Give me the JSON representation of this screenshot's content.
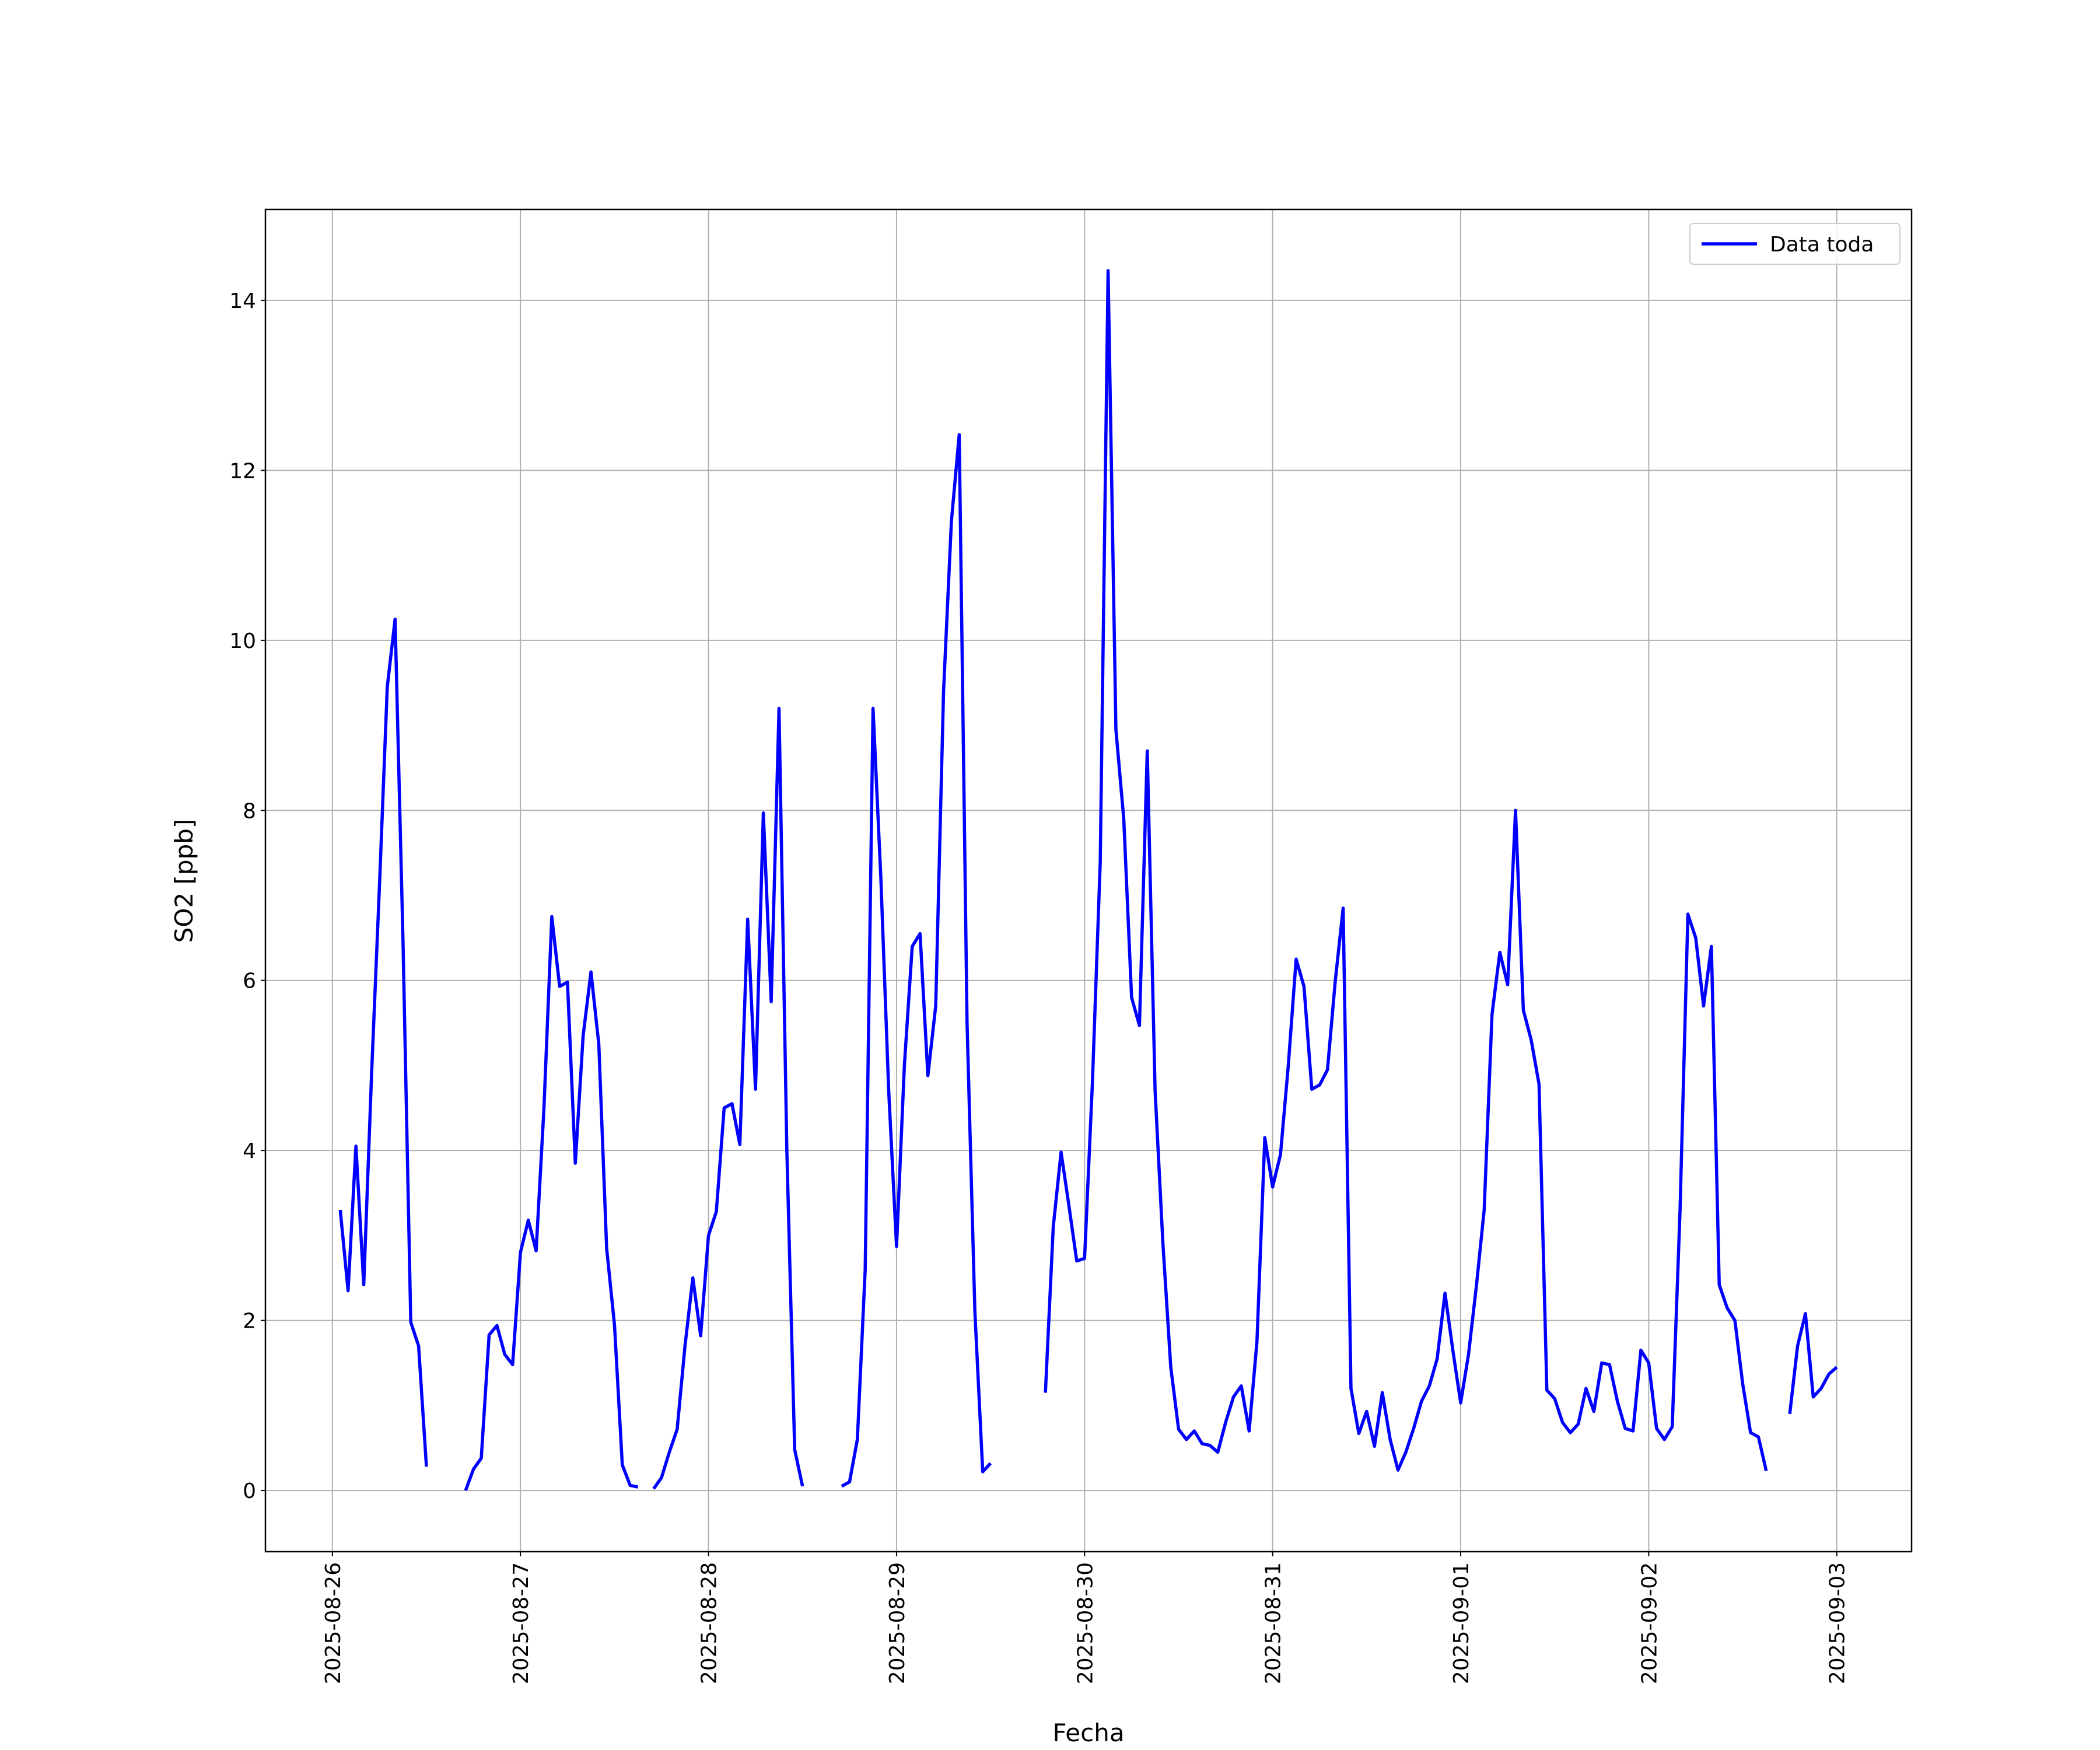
{
  "chart_data": {
    "type": "line",
    "x_label": "Fecha",
    "y_label": "SO2 [ppb]",
    "grid": true,
    "legend": "upper right",
    "xlim": [
      "2025-08-25 15:27",
      "2025-09-03 09:33"
    ],
    "xticks": [
      "2025-08-26",
      "2025-08-27",
      "2025-08-28",
      "2025-08-29",
      "2025-08-30",
      "2025-08-31",
      "2025-09-01",
      "2025-09-02",
      "2025-09-03"
    ],
    "ylim": [
      -0.72,
      15.07
    ],
    "yticks": [
      0,
      2,
      4,
      6,
      8,
      10,
      12,
      14
    ],
    "x": [
      "2025-08-26 01:00",
      "2025-08-26 02:00",
      "2025-08-26 03:00",
      "2025-08-26 04:00",
      "2025-08-26 05:00",
      "2025-08-26 06:00",
      "2025-08-26 07:00",
      "2025-08-26 08:00",
      "2025-08-26 09:00",
      "2025-08-26 10:00",
      "2025-08-26 11:00",
      "2025-08-26 12:00",
      "2025-08-26 13:00",
      "2025-08-26 17:00",
      "2025-08-26 18:00",
      "2025-08-26 19:00",
      "2025-08-26 20:00",
      "2025-08-26 21:00",
      "2025-08-26 22:00",
      "2025-08-26 23:00",
      "2025-08-27 00:00",
      "2025-08-27 01:00",
      "2025-08-27 02:00",
      "2025-08-27 03:00",
      "2025-08-27 04:00",
      "2025-08-27 05:00",
      "2025-08-27 06:00",
      "2025-08-27 07:00",
      "2025-08-27 08:00",
      "2025-08-27 09:00",
      "2025-08-27 10:00",
      "2025-08-27 11:00",
      "2025-08-27 12:00",
      "2025-08-27 13:00",
      "2025-08-27 14:00",
      "2025-08-27 15:00",
      "2025-08-27 16:00",
      "2025-08-27 17:00",
      "2025-08-27 18:00",
      "2025-08-27 19:00",
      "2025-08-27 20:00",
      "2025-08-27 21:00",
      "2025-08-27 22:00",
      "2025-08-27 23:00",
      "2025-08-28 00:00",
      "2025-08-28 01:00",
      "2025-08-28 02:00",
      "2025-08-28 03:00",
      "2025-08-28 04:00",
      "2025-08-28 05:00",
      "2025-08-28 06:00",
      "2025-08-28 07:00",
      "2025-08-28 08:00",
      "2025-08-28 09:00",
      "2025-08-28 10:00",
      "2025-08-28 11:00",
      "2025-08-28 12:00",
      "2025-08-28 13:00",
      "2025-08-28 17:00",
      "2025-08-28 18:00",
      "2025-08-28 19:00",
      "2025-08-28 20:00",
      "2025-08-28 21:00",
      "2025-08-28 22:00",
      "2025-08-28 23:00",
      "2025-08-29 00:00",
      "2025-08-29 01:00",
      "2025-08-29 02:00",
      "2025-08-29 03:00",
      "2025-08-29 04:00",
      "2025-08-29 05:00",
      "2025-08-29 06:00",
      "2025-08-29 07:00",
      "2025-08-29 08:00",
      "2025-08-29 09:00",
      "2025-08-29 10:00",
      "2025-08-29 11:00",
      "2025-08-29 12:00",
      "2025-08-29 13:00",
      "2025-08-29 19:00",
      "2025-08-29 20:00",
      "2025-08-29 21:00",
      "2025-08-29 22:00",
      "2025-08-29 23:00",
      "2025-08-30 00:00",
      "2025-08-30 01:00",
      "2025-08-30 02:00",
      "2025-08-30 03:00",
      "2025-08-30 04:00",
      "2025-08-30 05:00",
      "2025-08-30 06:00",
      "2025-08-30 07:00",
      "2025-08-30 08:00",
      "2025-08-30 09:00",
      "2025-08-30 10:00",
      "2025-08-30 11:00",
      "2025-08-30 12:00",
      "2025-08-30 13:00",
      "2025-08-30 14:00",
      "2025-08-30 15:00",
      "2025-08-30 16:00",
      "2025-08-30 17:00",
      "2025-08-30 18:00",
      "2025-08-30 19:00",
      "2025-08-30 20:00",
      "2025-08-30 21:00",
      "2025-08-30 22:00",
      "2025-08-30 23:00",
      "2025-08-31 00:00",
      "2025-08-31 01:00",
      "2025-08-31 02:00",
      "2025-08-31 03:00",
      "2025-08-31 04:00",
      "2025-08-31 05:00",
      "2025-08-31 06:00",
      "2025-08-31 07:00",
      "2025-08-31 08:00",
      "2025-08-31 09:00",
      "2025-08-31 10:00",
      "2025-08-31 11:00",
      "2025-08-31 12:00",
      "2025-08-31 13:00",
      "2025-08-31 14:00",
      "2025-08-31 15:00",
      "2025-08-31 16:00",
      "2025-08-31 17:00",
      "2025-08-31 18:00",
      "2025-08-31 19:00",
      "2025-08-31 20:00",
      "2025-08-31 21:00",
      "2025-08-31 22:00",
      "2025-08-31 23:00",
      "2025-09-01 00:00",
      "2025-09-01 01:00",
      "2025-09-01 02:00",
      "2025-09-01 03:00",
      "2025-09-01 04:00",
      "2025-09-01 05:00",
      "2025-09-01 06:00",
      "2025-09-01 07:00",
      "2025-09-01 08:00",
      "2025-09-01 09:00",
      "2025-09-01 10:00",
      "2025-09-01 11:00",
      "2025-09-01 12:00",
      "2025-09-01 13:00",
      "2025-09-01 14:00",
      "2025-09-01 15:00",
      "2025-09-01 16:00",
      "2025-09-01 17:00",
      "2025-09-01 18:00",
      "2025-09-01 19:00",
      "2025-09-01 20:00",
      "2025-09-01 21:00",
      "2025-09-01 22:00",
      "2025-09-01 23:00",
      "2025-09-02 00:00",
      "2025-09-02 01:00",
      "2025-09-02 02:00",
      "2025-09-02 03:00",
      "2025-09-02 04:00",
      "2025-09-02 05:00",
      "2025-09-02 06:00",
      "2025-09-02 07:00",
      "2025-09-02 08:00",
      "2025-09-02 09:00",
      "2025-09-02 10:00",
      "2025-09-02 11:00",
      "2025-09-02 12:00",
      "2025-09-02 13:00",
      "2025-09-02 14:00",
      "2025-09-02 15:00",
      "2025-09-02 16:00",
      "2025-09-02 18:00",
      "2025-09-02 19:00",
      "2025-09-02 20:00",
      "2025-09-02 21:00",
      "2025-09-02 22:00",
      "2025-09-02 23:00",
      "2025-09-03 00:00"
    ],
    "series": [
      {
        "name": "Data toda",
        "color": "#0000ff",
        "values": [
          3.3,
          2.35,
          4.05,
          2.42,
          4.9,
          7.1,
          9.45,
          10.25,
          6.5,
          1.98,
          1.7,
          0.28,
          null,
          0,
          0.25,
          0.38,
          1.83,
          1.94,
          1.6,
          1.48,
          2.8,
          3.18,
          2.82,
          4.5,
          6.75,
          5.93,
          5.98,
          3.85,
          5.35,
          6.1,
          5.25,
          2.85,
          1.95,
          0.3,
          0.06,
          0.04,
          null,
          0.02,
          0.15,
          0.45,
          0.72,
          1.7,
          2.5,
          1.82,
          3.0,
          3.28,
          4.5,
          4.55,
          4.07,
          6.72,
          4.72,
          7.97,
          5.75,
          9.2,
          4.0,
          0.48,
          0.05,
          null,
          0.05,
          0.1,
          0.6,
          2.6,
          9.2,
          7.2,
          4.7,
          2.87,
          5.0,
          6.4,
          6.55,
          4.88,
          5.7,
          9.4,
          11.4,
          12.42,
          5.5,
          2.1,
          0.22,
          0.32,
          null,
          1.15,
          3.1,
          3.98,
          3.35,
          2.7,
          2.73,
          4.8,
          7.4,
          14.35,
          8.95,
          7.9,
          5.8,
          5.47,
          8.7,
          4.7,
          2.9,
          1.45,
          0.72,
          0.6,
          0.7,
          0.55,
          0.53,
          0.45,
          0.8,
          1.1,
          1.23,
          0.7,
          1.75,
          4.15,
          3.57,
          3.95,
          5.0,
          6.25,
          5.93,
          4.72,
          4.77,
          4.95,
          6.0,
          6.85,
          1.2,
          0.67,
          0.93,
          0.52,
          1.15,
          0.6,
          0.24,
          0.45,
          0.73,
          1.05,
          1.23,
          1.55,
          2.32,
          1.65,
          1.03,
          1.6,
          2.4,
          3.3,
          5.6,
          6.33,
          5.95,
          8.0,
          5.65,
          5.3,
          4.78,
          1.18,
          1.08,
          0.8,
          0.68,
          0.78,
          1.2,
          0.93,
          1.5,
          1.48,
          1.05,
          0.73,
          0.7,
          1.65,
          1.5,
          0.73,
          0.6,
          0.75,
          3.3,
          6.78,
          6.5,
          5.7,
          6.4,
          2.42,
          2.15,
          2.0,
          1.25,
          0.68,
          0.63,
          0.23,
          null,
          0.9,
          1.7,
          2.08,
          1.1,
          1.2,
          1.37,
          1.45
        ]
      }
    ]
  }
}
